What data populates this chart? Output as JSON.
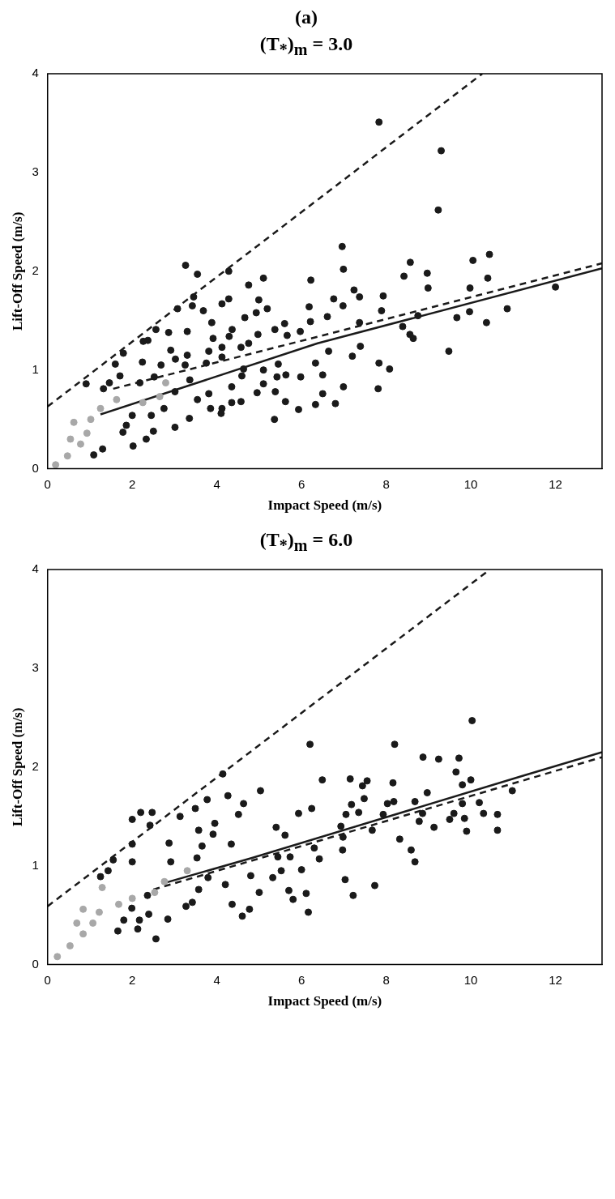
{
  "chart_data": [
    {
      "type": "scatter",
      "title": "(T$_{*}$)$_{m}$ = 3.0",
      "annotations": [
        "(a)"
      ],
      "xlabel": "Impact Speed (m/s)",
      "ylabel": "Lift-Off Speed (m/s)",
      "xlim": [
        0,
        13.1
      ],
      "ylim": [
        0,
        4
      ],
      "xticks": [
        0,
        2,
        4,
        6,
        8,
        10,
        12
      ],
      "yticks": [
        0,
        1,
        2,
        3,
        4
      ],
      "grid": false,
      "legend": false,
      "series": [
        {
          "marker": "circle",
          "color": "#1a1a1a",
          "x": [
            12.0,
            10.86,
            10.44,
            10.4,
            10.05,
            10.37,
            9.98,
            9.97,
            9.67,
            9.48,
            9.3,
            9.23,
            8.97,
            8.99,
            8.57,
            8.42,
            8.75,
            8.56,
            8.64,
            8.39,
            7.83,
            7.93,
            7.89,
            8.08,
            7.83,
            7.81,
            7.37,
            7.39,
            7.2,
            7.24,
            7.37,
            6.96,
            6.99,
            6.76,
            6.98,
            6.61,
            6.64,
            6.99,
            6.8,
            6.33,
            6.5,
            6.5,
            6.33,
            6.22,
            6.18,
            6.21,
            5.98,
            5.93,
            5.97,
            5.66,
            5.6,
            5.45,
            5.63,
            5.62,
            5.38,
            5.36,
            5.42,
            5.1,
            4.95,
            5.1,
            5.19,
            4.99,
            4.93,
            5.1,
            4.75,
            4.66,
            5.37,
            4.97,
            4.75,
            4.57,
            4.63,
            4.59,
            4.57,
            4.35,
            4.35,
            4.12,
            4.1,
            3.85,
            4.28,
            4.28,
            4.12,
            4.36,
            4.29,
            4.12,
            4.12,
            3.91,
            3.68,
            3.88,
            3.81,
            3.75,
            3.81,
            3.54,
            3.54,
            3.26,
            3.45,
            3.42,
            3.07,
            3.3,
            3.3,
            3.25,
            3.36,
            3.35,
            3.01,
            3.01,
            2.86,
            2.91,
            3.02,
            2.68,
            2.56,
            2.37,
            2.26,
            2.24,
            2.52,
            2.18,
            2.75,
            2.45,
            2.5,
            2.33,
            2.02,
            2.0,
            1.86,
            1.78,
            1.79,
            1.6,
            1.71,
            1.46,
            1.32,
            0.91,
            1.3,
            1.09
          ],
          "values": [
            1.84,
            1.62,
            2.17,
            1.93,
            2.11,
            1.48,
            1.83,
            1.59,
            1.53,
            1.19,
            3.22,
            2.62,
            1.98,
            1.83,
            2.09,
            1.95,
            1.55,
            1.36,
            1.32,
            1.44,
            3.51,
            1.75,
            1.6,
            1.01,
            1.07,
            0.81,
            1.48,
            1.24,
            1.14,
            1.81,
            1.74,
            2.25,
            2.02,
            1.72,
            1.65,
            1.54,
            1.19,
            0.83,
            0.66,
            1.07,
            0.95,
            0.76,
            0.65,
            1.91,
            1.64,
            1.49,
            0.93,
            0.6,
            1.39,
            1.35,
            1.47,
            1.06,
            0.95,
            0.68,
            0.78,
            0.5,
            0.93,
            0.86,
            0.77,
            1.0,
            1.62,
            1.71,
            1.58,
            1.93,
            1.86,
            1.53,
            1.41,
            1.36,
            1.27,
            1.23,
            1.01,
            0.94,
            0.68,
            0.67,
            0.83,
            0.61,
            0.56,
            0.61,
            2.0,
            1.72,
            1.67,
            1.41,
            1.34,
            1.23,
            1.13,
            1.32,
            1.6,
            1.48,
            1.19,
            1.07,
            0.76,
            0.7,
            1.97,
            2.06,
            1.74,
            1.65,
            1.62,
            1.39,
            1.15,
            1.05,
            0.9,
            0.51,
            0.42,
            0.78,
            1.38,
            1.2,
            1.11,
            1.05,
            1.41,
            1.3,
            1.29,
            1.08,
            0.93,
            0.87,
            0.61,
            0.54,
            0.38,
            0.3,
            0.23,
            0.54,
            0.44,
            0.37,
            1.17,
            1.06,
            0.94,
            0.87,
            0.81,
            0.86,
            0.2,
            0.14
          ]
        },
        {
          "marker": "circle",
          "color": "#a8a8a8",
          "x": [
            1.63,
            1.25,
            1.02,
            0.93,
            0.78,
            0.47,
            0.19,
            0.62,
            0.54,
            2.65,
            2.25,
            2.79
          ],
          "values": [
            0.7,
            0.61,
            0.5,
            0.36,
            0.25,
            0.13,
            0.04,
            0.47,
            0.3,
            0.73,
            0.67,
            0.87
          ]
        },
        {
          "type": "line",
          "marker": "none",
          "line_style": "dashed",
          "color": "#1a1a1a",
          "x": [
            0,
            10.27
          ],
          "values": [
            0.63,
            4
          ]
        },
        {
          "type": "line",
          "marker": "none",
          "line_style": "solid",
          "color": "#1a1a1a",
          "x": [
            1.25,
            6.38,
            13.1
          ],
          "values": [
            0.55,
            1.27,
            2.03
          ]
        },
        {
          "type": "line",
          "marker": "none",
          "line_style": "dashed",
          "color": "#1a1a1a",
          "x": [
            1.55,
            6.41,
            13.1
          ],
          "values": [
            0.81,
            1.34,
            2.08
          ]
        }
      ]
    },
    {
      "type": "scatter",
      "title": "(T$_{*}$)$_{m}$ = 6.0",
      "xlabel": "Impact Speed (m/s)",
      "ylabel": "Lift-Off Speed (m/s)",
      "xlim": [
        0,
        13.1
      ],
      "ylim": [
        0,
        4
      ],
      "xticks": [
        0,
        2,
        4,
        6,
        8,
        10,
        12
      ],
      "yticks": [
        0,
        1,
        2,
        3,
        4
      ],
      "grid": false,
      "legend": false,
      "series": [
        {
          "marker": "circle",
          "color": "#1a1a1a",
          "x": [
            10.98,
            10.63,
            10.63,
            10.03,
            10.0,
            10.2,
            10.3,
            9.72,
            9.65,
            9.8,
            9.8,
            9.85,
            9.9,
            9.6,
            9.5,
            9.24,
            8.87,
            8.97,
            9.13,
            8.86,
            8.78,
            8.68,
            8.59,
            8.68,
            8.32,
            8.2,
            8.16,
            8.18,
            8.03,
            7.93,
            7.67,
            7.73,
            7.55,
            7.44,
            7.48,
            7.35,
            7.15,
            7.18,
            7.05,
            6.93,
            6.98,
            6.97,
            7.03,
            7.22,
            6.49,
            6.2,
            6.24,
            5.93,
            6.3,
            6.42,
            6.0,
            6.11,
            6.16,
            5.7,
            5.8,
            5.61,
            5.4,
            5.73,
            5.44,
            5.52,
            5.32,
            5.03,
            4.63,
            4.51,
            4.26,
            5.0,
            4.77,
            4.6,
            4.36,
            4.2,
            4.8,
            4.34,
            4.14,
            3.77,
            3.95,
            3.91,
            3.49,
            3.13,
            3.57,
            3.65,
            3.53,
            3.79,
            3.57,
            3.42,
            3.27,
            2.87,
            2.91,
            2.84,
            2.56,
            2.47,
            2.42,
            2.2,
            2.0,
            2.0,
            2.0,
            2.39,
            2.17,
            2.13,
            1.8,
            1.66,
            1.55,
            1.43,
            1.25,
            1.99,
            2.36
          ],
          "values": [
            1.76,
            1.52,
            1.36,
            2.47,
            1.87,
            1.64,
            1.53,
            2.09,
            1.95,
            1.82,
            1.63,
            1.48,
            1.35,
            1.53,
            1.47,
            2.08,
            2.1,
            1.74,
            1.39,
            1.53,
            1.45,
            1.65,
            1.16,
            1.04,
            1.27,
            2.23,
            1.84,
            1.65,
            1.63,
            1.52,
            1.36,
            0.8,
            1.86,
            1.81,
            1.68,
            1.54,
            1.88,
            1.62,
            1.52,
            1.4,
            1.29,
            1.16,
            0.86,
            0.7,
            1.87,
            2.23,
            1.58,
            1.53,
            1.18,
            1.07,
            0.96,
            0.72,
            0.53,
            0.75,
            0.66,
            1.31,
            1.39,
            1.09,
            1.09,
            0.95,
            0.88,
            1.76,
            1.63,
            1.52,
            1.71,
            0.73,
            0.56,
            0.49,
            0.61,
            0.81,
            0.9,
            1.22,
            1.93,
            1.67,
            1.43,
            1.32,
            1.58,
            1.5,
            1.36,
            1.2,
            1.08,
            0.88,
            0.76,
            0.63,
            0.59,
            1.23,
            1.04,
            0.46,
            0.26,
            1.54,
            1.41,
            1.54,
            1.47,
            1.22,
            1.04,
            0.51,
            0.45,
            0.36,
            0.45,
            0.34,
            1.06,
            0.95,
            0.89,
            0.57,
            0.7
          ]
        },
        {
          "marker": "circle",
          "color": "#a8a8a8",
          "x": [
            3.3,
            2.76,
            2.53,
            2.0,
            1.29,
            1.68,
            1.22,
            1.07,
            0.84,
            0.53,
            0.23,
            0.84,
            0.69
          ],
          "values": [
            0.95,
            0.84,
            0.73,
            0.67,
            0.78,
            0.61,
            0.53,
            0.42,
            0.31,
            0.19,
            0.08,
            0.56,
            0.42
          ]
        },
        {
          "type": "line",
          "marker": "none",
          "line_style": "dashed",
          "color": "#1a1a1a",
          "x": [
            0,
            10.45
          ],
          "values": [
            0.59,
            4
          ]
        },
        {
          "type": "line",
          "marker": "none",
          "line_style": "solid",
          "color": "#1a1a1a",
          "x": [
            2.8,
            4.83,
            11.22,
            13.1
          ],
          "values": [
            0.83,
            1.08,
            1.91,
            2.15
          ]
        },
        {
          "type": "line",
          "marker": "none",
          "line_style": "dashed",
          "color": "#1a1a1a",
          "x": [
            2.5,
            6,
            13.1
          ],
          "values": [
            0.76,
            1.2,
            2.1
          ]
        }
      ]
    }
  ]
}
